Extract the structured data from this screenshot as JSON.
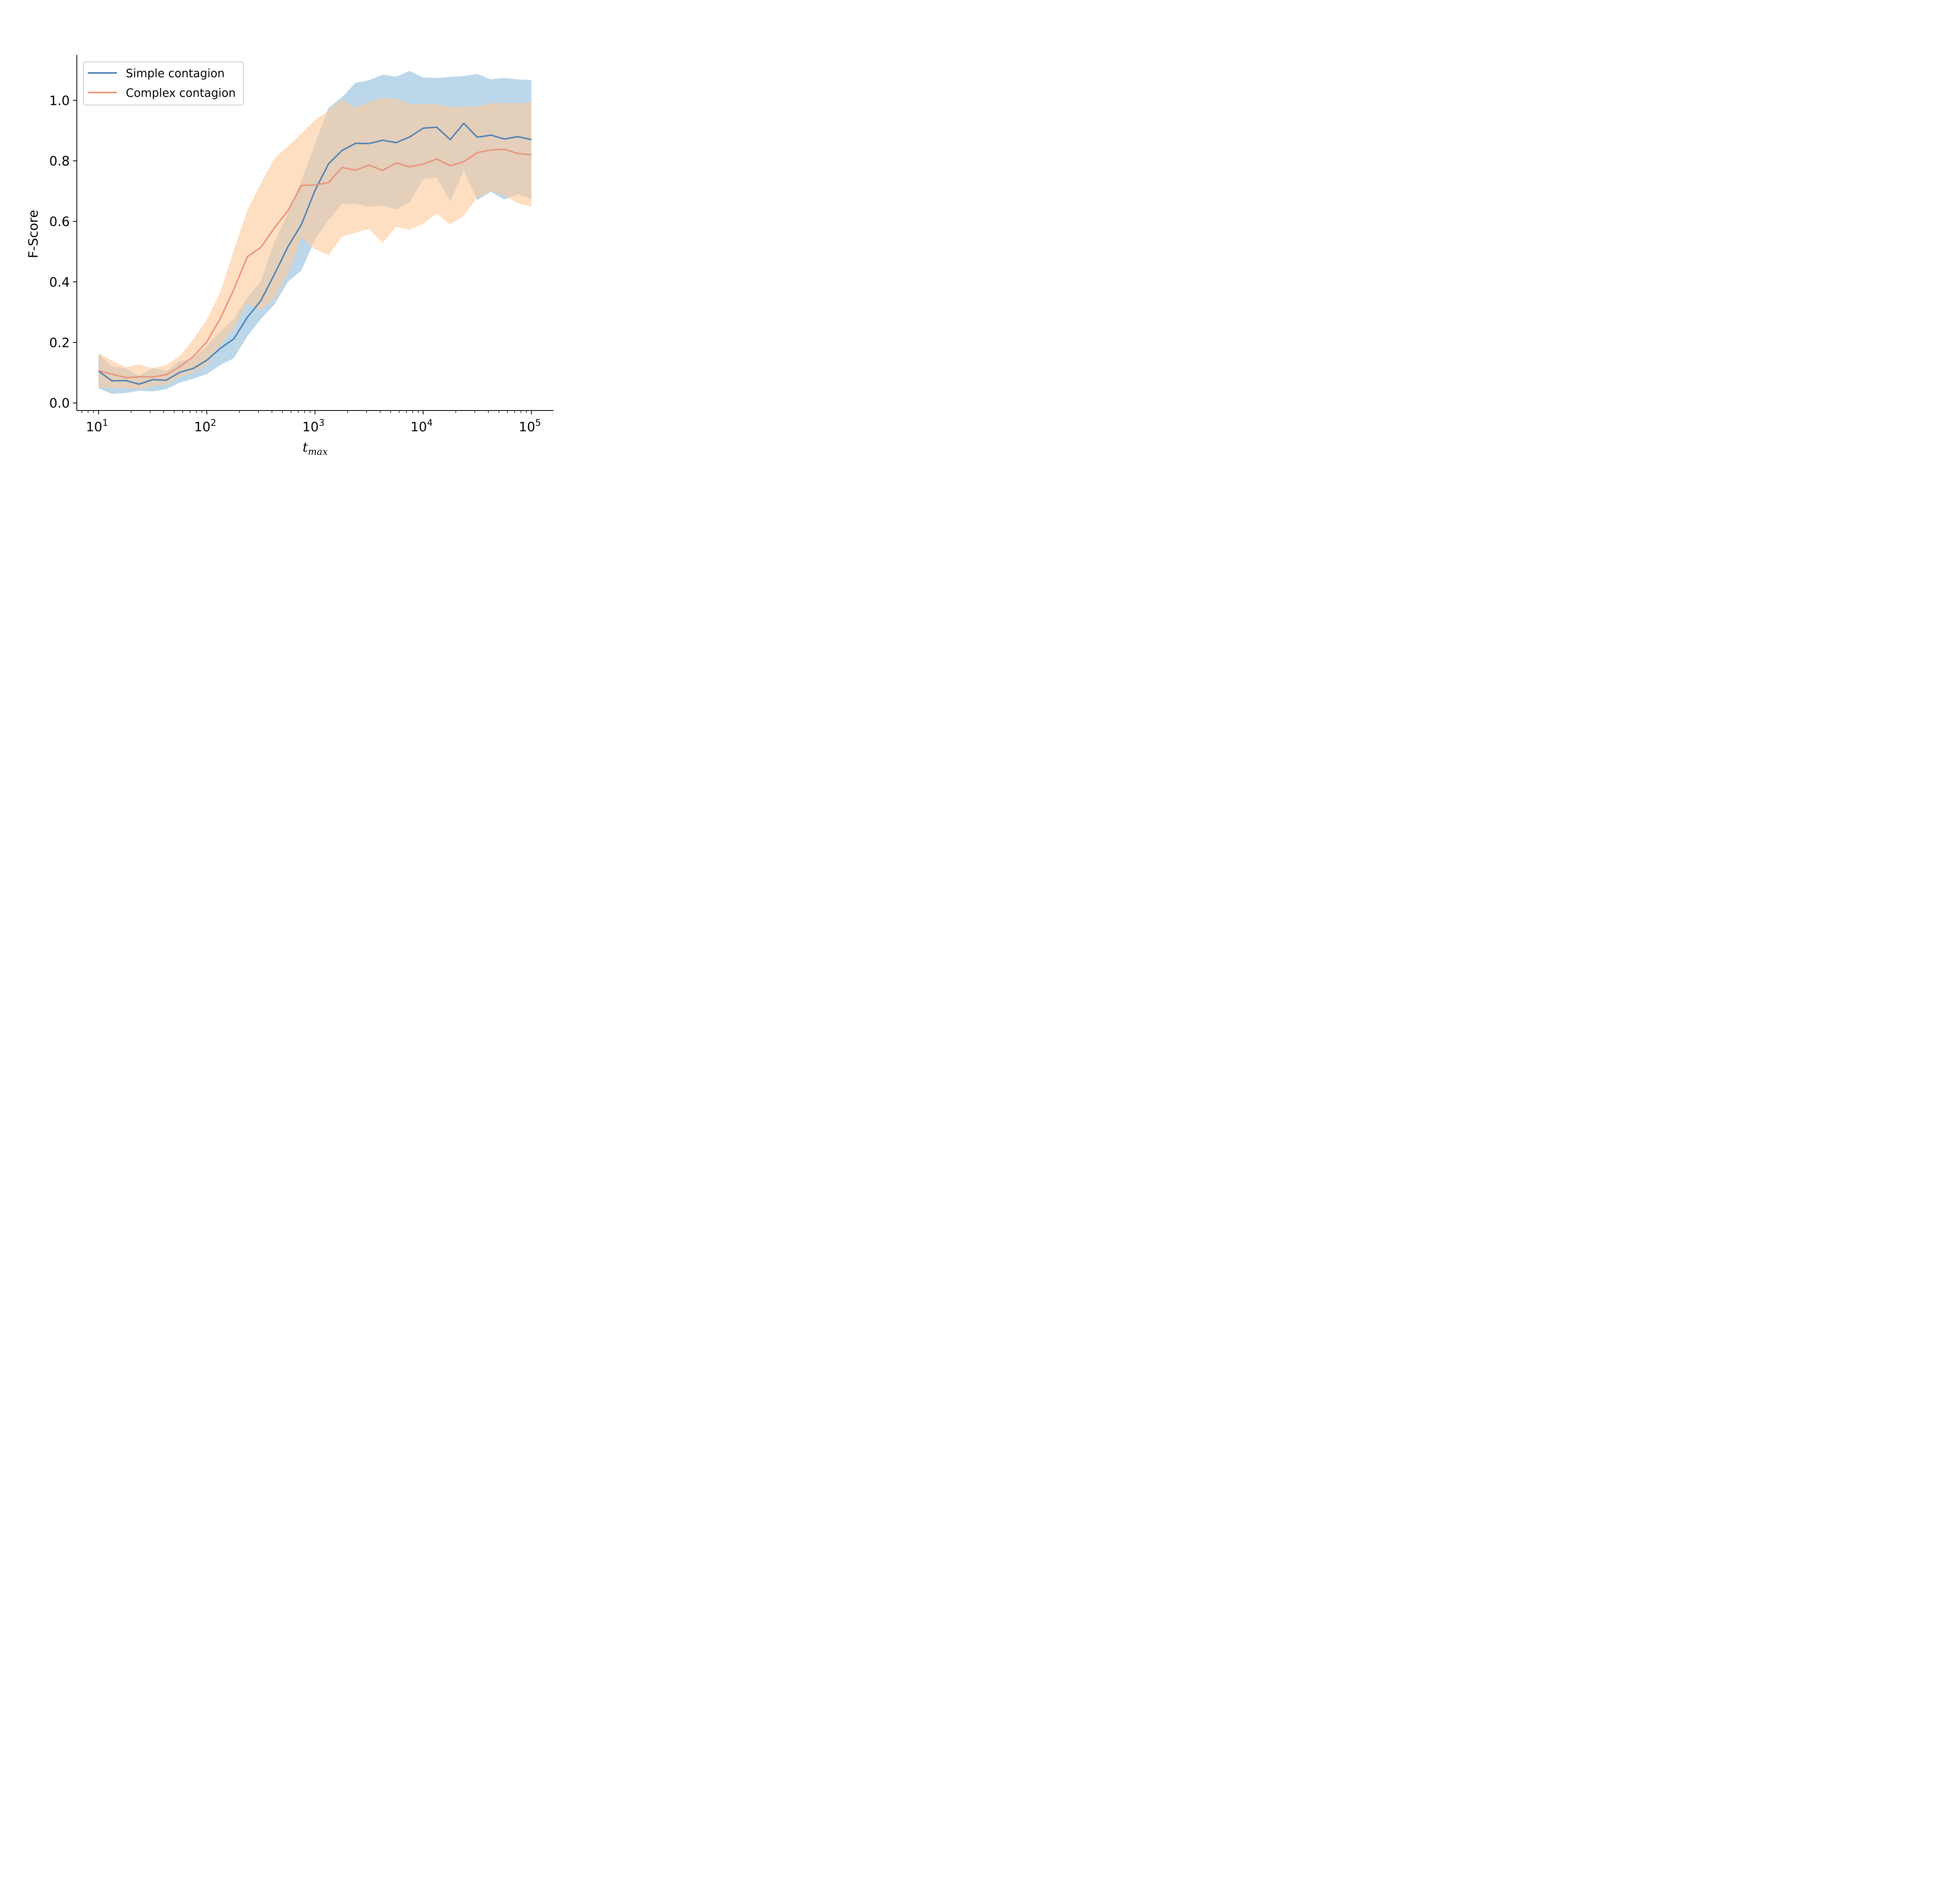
{
  "chart_data": {
    "type": "line",
    "xscale": "log",
    "xlim": [
      6.3,
      160000
    ],
    "ylim": [
      -0.025,
      1.15
    ],
    "xlabel": "t_max",
    "xlabel_main": "t",
    "xlabel_sub": "max",
    "ylabel": "F-Score",
    "title": "",
    "grid": false,
    "legend_position": "top-left",
    "x_ticks": [
      {
        "value": 10,
        "base": "10",
        "exp": "1"
      },
      {
        "value": 100,
        "base": "10",
        "exp": "2"
      },
      {
        "value": 1000,
        "base": "10",
        "exp": "3"
      },
      {
        "value": 10000,
        "base": "10",
        "exp": "4"
      },
      {
        "value": 100000,
        "base": "10",
        "exp": "5"
      }
    ],
    "y_ticks": [
      {
        "value": 0.0,
        "label": "0.0"
      },
      {
        "value": 0.2,
        "label": "0.2"
      },
      {
        "value": 0.4,
        "label": "0.4"
      },
      {
        "value": 0.6,
        "label": "0.6"
      },
      {
        "value": 0.8,
        "label": "0.8"
      },
      {
        "value": 1.0,
        "label": "1.0"
      }
    ],
    "x": [
      10,
      13.3,
      17.8,
      23.7,
      31.6,
      42.2,
      56.2,
      75,
      100,
      133,
      178,
      237,
      316,
      422,
      562,
      750,
      1000,
      1334,
      1778,
      2371,
      3162,
      4217,
      5623,
      7499,
      10000,
      13335,
      17783,
      23714,
      31623,
      42170,
      56234,
      74989,
      100000
    ],
    "series": [
      {
        "name": "Simple contagion",
        "color": "#4a7fb5",
        "band_color": "#8fbcdc",
        "values": [
          0.105,
          0.073,
          0.074,
          0.062,
          0.077,
          0.075,
          0.101,
          0.114,
          0.141,
          0.18,
          0.212,
          0.283,
          0.338,
          0.425,
          0.516,
          0.59,
          0.702,
          0.79,
          0.834,
          0.858,
          0.857,
          0.868,
          0.86,
          0.879,
          0.908,
          0.911,
          0.87,
          0.924,
          0.878,
          0.885,
          0.872,
          0.88,
          0.87
        ],
        "lower": [
          0.048,
          0.03,
          0.033,
          0.04,
          0.038,
          0.046,
          0.067,
          0.08,
          0.095,
          0.125,
          0.148,
          0.22,
          0.277,
          0.325,
          0.4,
          0.438,
          0.54,
          0.605,
          0.658,
          0.658,
          0.648,
          0.652,
          0.64,
          0.662,
          0.74,
          0.745,
          0.665,
          0.768,
          0.67,
          0.698,
          0.672,
          0.69,
          0.673
        ],
        "upper": [
          0.162,
          0.12,
          0.115,
          0.09,
          0.115,
          0.105,
          0.138,
          0.148,
          0.188,
          0.235,
          0.278,
          0.348,
          0.402,
          0.532,
          0.625,
          0.735,
          0.855,
          0.975,
          1.01,
          1.058,
          1.066,
          1.085,
          1.078,
          1.097,
          1.075,
          1.074,
          1.077,
          1.08,
          1.087,
          1.069,
          1.074,
          1.069,
          1.067
        ]
      },
      {
        "name": "Complex contagion",
        "color": "#e8927a",
        "band_color": "#fdc999",
        "values": [
          0.107,
          0.095,
          0.084,
          0.086,
          0.086,
          0.093,
          0.12,
          0.153,
          0.202,
          0.278,
          0.375,
          0.483,
          0.514,
          0.578,
          0.635,
          0.719,
          0.72,
          0.728,
          0.778,
          0.769,
          0.786,
          0.768,
          0.793,
          0.78,
          0.789,
          0.806,
          0.784,
          0.797,
          0.827,
          0.836,
          0.838,
          0.824,
          0.82
        ],
        "lower": [
          0.05,
          0.05,
          0.048,
          0.045,
          0.055,
          0.06,
          0.085,
          0.1,
          0.125,
          0.19,
          0.245,
          0.33,
          0.305,
          0.345,
          0.425,
          0.545,
          0.508,
          0.488,
          0.55,
          0.562,
          0.575,
          0.528,
          0.582,
          0.572,
          0.592,
          0.625,
          0.59,
          0.618,
          0.678,
          0.7,
          0.685,
          0.66,
          0.648
        ],
        "upper": [
          0.165,
          0.14,
          0.118,
          0.128,
          0.115,
          0.125,
          0.155,
          0.21,
          0.275,
          0.365,
          0.505,
          0.637,
          0.725,
          0.808,
          0.848,
          0.89,
          0.935,
          0.966,
          1.003,
          0.975,
          0.995,
          1.008,
          1.005,
          0.988,
          0.988,
          0.988,
          0.978,
          0.978,
          0.98,
          0.99,
          0.992,
          0.99,
          0.995
        ]
      }
    ]
  }
}
